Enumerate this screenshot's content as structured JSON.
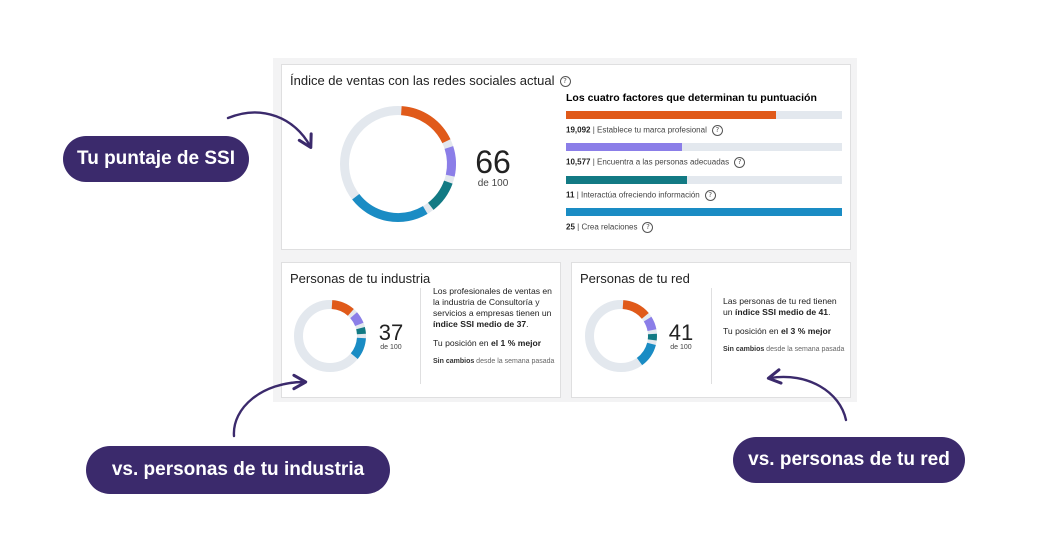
{
  "main": {
    "title": "Índice de ventas con las redes sociales actual",
    "help_icon": "question-circle-icon",
    "score": "66",
    "score_of": "de 100",
    "factors_heading": "Los cuatro factores que determinan tu puntuación",
    "factors": [
      {
        "value": "19,092",
        "label": "| Establece tu marca profesional",
        "fill_fraction": 0.76,
        "color": "#e05a1a"
      },
      {
        "value": "10,577",
        "label": "| Encuentra a las personas adecuadas",
        "fill_fraction": 0.42,
        "color": "#8b7ee8"
      },
      {
        "value": "11",
        "label": "| Interactúa ofreciendo información",
        "fill_fraction": 0.44,
        "color": "#127a84"
      },
      {
        "value": "25",
        "label": "| Crea relaciones",
        "fill_fraction": 1.0,
        "color": "#1a8cc4"
      }
    ]
  },
  "industry": {
    "title": "Personas de tu industria",
    "score": "37",
    "score_of": "de 100",
    "description_parts": [
      "Los profesionales de ventas en la industria de Consultoría y servicios a empresas tienen un ",
      "índice SSI medio de 37",
      "."
    ],
    "position_parts": [
      "Tu posición en ",
      "el 1 % mejor"
    ],
    "change_bold": "Sin cambios",
    "change_rest": " desde la semana pasada"
  },
  "network": {
    "title": "Personas de tu red",
    "score": "41",
    "score_of": "de 100",
    "description_parts": [
      "Las personas de tu red tienen un ",
      "índice SSI medio de 41",
      "."
    ],
    "position_parts": [
      "Tu posición en ",
      "el 3 % mejor"
    ],
    "change_bold": "Sin cambios",
    "change_rest": " desde la semana pasada"
  },
  "callouts": {
    "ssi": "Tu puntaje de SSI",
    "industry": "vs. personas de tu industria",
    "network": "vs. personas de tu red"
  },
  "colors": {
    "accent_dark": "#3b2a6c",
    "orange": "#e05a1a",
    "purple": "#8b7ee8",
    "teal": "#127a84",
    "blue": "#1a8cc4",
    "track": "#e3e8ee"
  }
}
